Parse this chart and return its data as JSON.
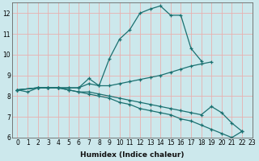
{
  "xlabel": "Humidex (Indice chaleur)",
  "xlim": [
    -0.5,
    23
  ],
  "ylim": [
    6,
    12.5
  ],
  "background_color": "#cce8ec",
  "grid_color_major": "#e8b0b0",
  "grid_color_minor": "#e8b0b0",
  "line_color": "#1a7070",
  "series": [
    {
      "x": [
        0,
        1,
        2,
        3,
        4,
        5,
        6,
        7,
        8,
        9,
        10,
        11,
        12,
        13,
        14,
        15,
        16,
        17,
        18
      ],
      "y": [
        8.3,
        8.2,
        8.4,
        8.4,
        8.4,
        8.4,
        8.4,
        8.85,
        8.5,
        9.8,
        10.75,
        11.2,
        12.0,
        12.2,
        12.35,
        11.9,
        11.9,
        10.3,
        9.7
      ]
    },
    {
      "x": [
        0,
        2,
        3,
        4,
        5,
        6,
        7,
        8,
        9,
        10,
        11,
        12,
        13,
        14,
        15,
        16,
        17,
        18,
        19
      ],
      "y": [
        8.3,
        8.4,
        8.4,
        8.4,
        8.4,
        8.4,
        8.6,
        8.5,
        8.5,
        8.6,
        8.7,
        8.8,
        8.9,
        9.0,
        9.15,
        9.3,
        9.45,
        9.55,
        9.65
      ]
    },
    {
      "x": [
        0,
        2,
        3,
        4,
        5,
        6,
        7,
        8,
        9,
        10,
        11,
        12,
        13,
        14,
        15,
        16,
        17,
        18,
        19,
        20,
        21,
        22
      ],
      "y": [
        8.3,
        8.4,
        8.4,
        8.4,
        8.3,
        8.2,
        8.2,
        8.1,
        8.0,
        7.9,
        7.8,
        7.7,
        7.6,
        7.5,
        7.4,
        7.3,
        7.2,
        7.1,
        7.5,
        7.2,
        6.7,
        6.3
      ]
    },
    {
      "x": [
        0,
        2,
        3,
        4,
        5,
        6,
        7,
        8,
        9,
        10,
        11,
        12,
        13,
        14,
        15,
        16,
        17,
        18,
        19,
        20,
        21,
        22
      ],
      "y": [
        8.3,
        8.4,
        8.4,
        8.4,
        8.3,
        8.2,
        8.1,
        8.0,
        7.9,
        7.7,
        7.6,
        7.4,
        7.3,
        7.2,
        7.1,
        6.9,
        6.8,
        6.6,
        6.4,
        6.2,
        6.0,
        6.3
      ]
    }
  ],
  "yticks": [
    6,
    7,
    8,
    9,
    10,
    11,
    12
  ],
  "xticks": [
    0,
    1,
    2,
    3,
    4,
    5,
    6,
    7,
    8,
    9,
    10,
    11,
    12,
    13,
    14,
    15,
    16,
    17,
    18,
    19,
    20,
    21,
    22,
    23
  ],
  "tick_fontsize": 5.5,
  "xlabel_fontsize": 6.5
}
